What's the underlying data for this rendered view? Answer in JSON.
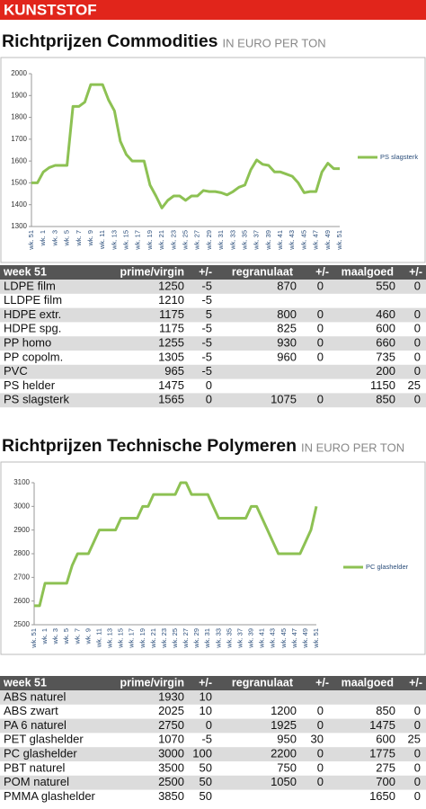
{
  "header": {
    "label": "KUNSTSTOF"
  },
  "sections": [
    {
      "title": "Richtprijzen Commodities",
      "subtitle": "IN EURO PER TON",
      "table": {
        "columns": [
          "week 51",
          "prime/virgin",
          "+/-",
          "regranulaat",
          "+/-",
          "maalgoed",
          "+/-"
        ],
        "rows": [
          [
            "LDPE film",
            1250,
            -5,
            870,
            0,
            550,
            0
          ],
          [
            "LLDPE film",
            1210,
            -5,
            null,
            null,
            null,
            null
          ],
          [
            "HDPE extr.",
            1175,
            5,
            800,
            0,
            460,
            0
          ],
          [
            "HDPE spg.",
            1175,
            -5,
            825,
            0,
            600,
            0
          ],
          [
            "PP homo",
            1255,
            -5,
            930,
            0,
            660,
            0
          ],
          [
            "PP copolm.",
            1305,
            -5,
            960,
            0,
            735,
            0
          ],
          [
            "PVC",
            965,
            -5,
            null,
            null,
            200,
            0
          ],
          [
            "PS helder",
            1475,
            0,
            null,
            null,
            1150,
            25
          ],
          [
            "PS slagsterk",
            1565,
            0,
            1075,
            0,
            850,
            0
          ]
        ]
      }
    },
    {
      "title": "Richtprijzen Technische Polymeren",
      "subtitle": "IN EURO PER TON",
      "table": {
        "columns": [
          "week 51",
          "prime/virgin",
          "+/-",
          "regranulaat",
          "+/-",
          "maalgoed",
          "+/-"
        ],
        "rows": [
          [
            "ABS naturel",
            1930,
            10,
            null,
            null,
            null,
            null
          ],
          [
            "ABS zwart",
            2025,
            10,
            1200,
            0,
            850,
            0
          ],
          [
            "PA 6 naturel",
            2750,
            0,
            1925,
            0,
            1475,
            0
          ],
          [
            "PET glashelder",
            1070,
            -5,
            950,
            30,
            600,
            25
          ],
          [
            "PC glashelder",
            3000,
            100,
            2200,
            0,
            1775,
            0
          ],
          [
            "PBT naturel",
            3500,
            50,
            750,
            0,
            275,
            0
          ],
          [
            "POM naturel",
            2500,
            50,
            1050,
            0,
            700,
            0
          ],
          [
            "PMMA glashelder",
            3850,
            50,
            null,
            null,
            1650,
            0
          ]
        ]
      }
    }
  ],
  "chart_data": [
    {
      "type": "line",
      "categories": [
        "wk. 51",
        null,
        "wk. 1",
        null,
        "wk. 3",
        null,
        "wk. 5",
        null,
        "wk. 7",
        null,
        "wk. 9",
        null,
        "wk. 11",
        null,
        "wk. 13",
        null,
        "wk. 15",
        null,
        "wk. 17",
        null,
        "wk. 19",
        null,
        "wk. 21",
        null,
        "wk. 23",
        null,
        "wk. 25",
        null,
        "wk. 27",
        null,
        "wk. 29",
        null,
        "wk. 31",
        null,
        "wk. 33",
        null,
        "wk. 35",
        null,
        "wk. 37",
        null,
        "wk. 39",
        null,
        "wk. 41",
        null,
        "wk. 43",
        null,
        "wk. 45",
        null,
        "wk. 47",
        null,
        "wk. 49",
        null,
        "wk. 51"
      ],
      "series": [
        {
          "name": "PS slagsterk",
          "color": "#8dc153",
          "values": [
            1500,
            1500,
            1550,
            1570,
            1580,
            1580,
            1580,
            1850,
            1850,
            1870,
            1950,
            1950,
            1950,
            1880,
            1830,
            1690,
            1630,
            1600,
            1600,
            1600,
            1490,
            1440,
            1385,
            1420,
            1440,
            1440,
            1420,
            1440,
            1440,
            1465,
            1460,
            1460,
            1455,
            1445,
            1460,
            1480,
            1490,
            1560,
            1605,
            1585,
            1580,
            1550,
            1550,
            1540,
            1530,
            1500,
            1455,
            1460,
            1460,
            1550,
            1590,
            1565,
            1565
          ]
        }
      ],
      "ylim": [
        1300,
        2000
      ],
      "yticks": [
        1300,
        1400,
        1500,
        1600,
        1700,
        1800,
        1900,
        2000
      ],
      "grid": false,
      "legend": "right"
    },
    {
      "type": "line",
      "categories": [
        "wk. 51",
        null,
        "wk. 1",
        null,
        "wk. 3",
        null,
        "wk. 5",
        null,
        "wk. 7",
        null,
        "wk. 9",
        null,
        "wk. 11",
        null,
        "wk. 13",
        null,
        "wk. 15",
        null,
        "wk. 17",
        null,
        "wk. 19",
        null,
        "wk. 21",
        null,
        "wk. 23",
        null,
        "wk. 25",
        null,
        "wk. 27",
        null,
        "wk. 29",
        null,
        "wk. 31",
        null,
        "wk. 33",
        null,
        "wk. 35",
        null,
        "wk. 37",
        null,
        "wk. 39",
        null,
        "wk. 41",
        null,
        "wk. 43",
        null,
        "wk. 45",
        null,
        "wk. 47",
        null,
        "wk. 49",
        null,
        "wk. 51"
      ],
      "series": [
        {
          "name": "PC glashelder",
          "color": "#8dc153",
          "values": [
            2580,
            2580,
            2675,
            2675,
            2675,
            2675,
            2675,
            2750,
            2800,
            2800,
            2800,
            2850,
            2900,
            2900,
            2900,
            2900,
            2950,
            2950,
            2950,
            2950,
            3000,
            3000,
            3050,
            3050,
            3050,
            3050,
            3050,
            3100,
            3100,
            3050,
            3050,
            3050,
            3050,
            3000,
            2950,
            2950,
            2950,
            2950,
            2950,
            2950,
            3000,
            3000,
            2950,
            2900,
            2850,
            2800,
            2800,
            2800,
            2800,
            2800,
            2850,
            2900,
            3000
          ]
        }
      ],
      "ylim": [
        2500,
        3100
      ],
      "yticks": [
        2500,
        2600,
        2700,
        2800,
        2900,
        3000,
        3100
      ],
      "grid": false,
      "legend": "right"
    }
  ]
}
